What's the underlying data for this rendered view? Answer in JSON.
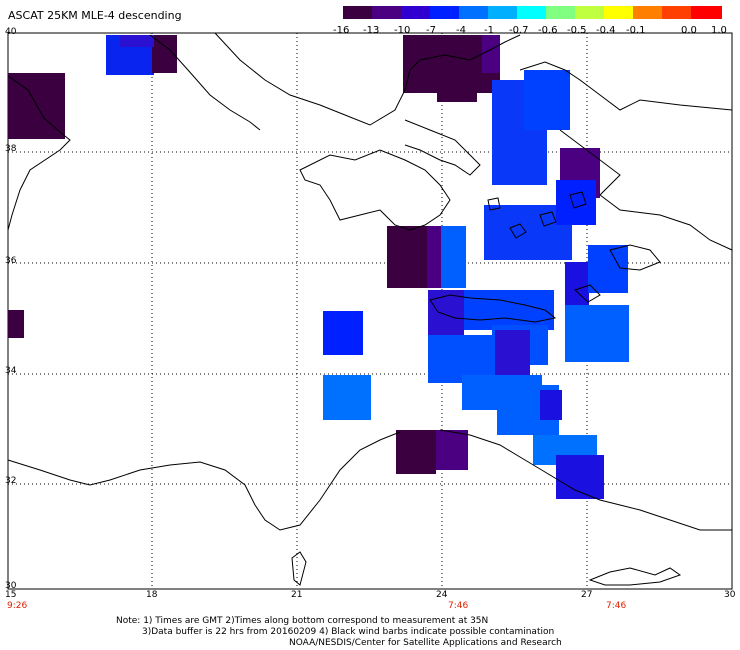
{
  "title": "ASCAT 25KM MLE-4 descending",
  "colorbar": {
    "labels": [
      "-16",
      "-13",
      "-10",
      "-7",
      "-4",
      "-1",
      "-0.7",
      "-0.6",
      "-0.5",
      "-0.4",
      "-0.1",
      "0.0",
      "1.0"
    ],
    "colors": [
      "#3a0040",
      "#4a0080",
      "#3000d0",
      "#0020ff",
      "#0070ff",
      "#00b0ff",
      "#00ffff",
      "#80ff80",
      "#c0ff40",
      "#ffff00",
      "#ff8000",
      "#ff4000",
      "#ff0000"
    ]
  },
  "lat_labels": [
    "40",
    "38",
    "36",
    "34",
    "32",
    "30"
  ],
  "lon_labels": [
    "15",
    "18",
    "21",
    "24",
    "27",
    "30"
  ],
  "times": [
    "9:26",
    "7:46",
    "7:46"
  ],
  "notes": [
    "Note: 1) Times are GMT 2)Times along bottom correspond to measurement at 35N",
    "3)Data buffer is 22 hrs from 20160209 4) Black wind barbs indicate possible contamination",
    "NOAA/NESDIS/Center for Satellite Applications and Research"
  ]
}
